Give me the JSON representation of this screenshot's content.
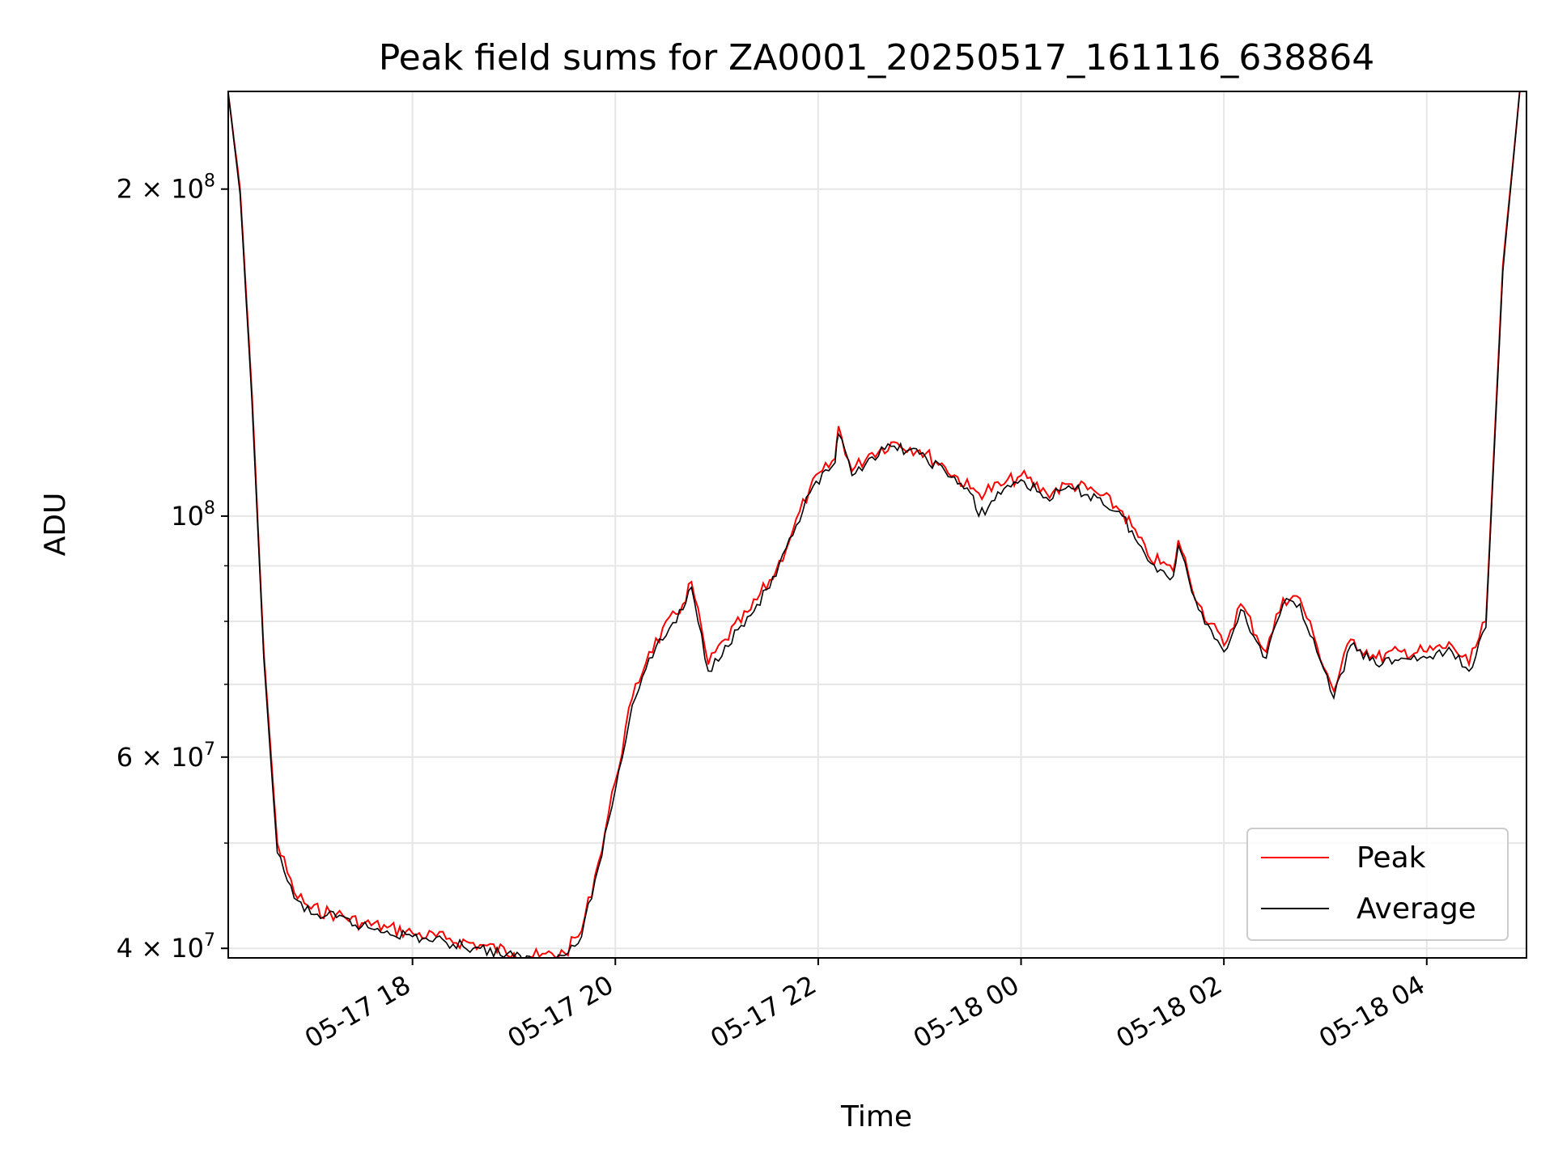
{
  "chart_data": {
    "type": "line",
    "title": "Peak field sums for ZA0001_20250517_161116_638864",
    "xlabel": "Time",
    "ylabel": "ADU",
    "x_ticks": [
      "05-17 18",
      "05-17 20",
      "05-17 22",
      "05-18 00",
      "05-18 02",
      "05-18 04"
    ],
    "y_ticks": [
      {
        "value": 40000000,
        "mant": "4 × 10",
        "exp": "7"
      },
      {
        "value": 60000000,
        "mant": "6 × 10",
        "exp": "7"
      },
      {
        "value": 100000000,
        "mant": "10",
        "exp": "8"
      },
      {
        "value": 200000000,
        "mant": "2 × 10",
        "exp": "8"
      }
    ],
    "xlim": [
      "2025-05-17 16:11",
      "2025-05-18 04:59"
    ],
    "ylim": [
      39200000,
      246000000
    ],
    "yscale": "log",
    "grid": true,
    "legend_position": "lower right",
    "series": [
      {
        "name": "Peak",
        "color": "#ff0000",
        "x": [
          "2025-05-17 16:11",
          "2025-05-17 16:18",
          "2025-05-17 16:25",
          "2025-05-17 16:32",
          "2025-05-17 16:40",
          "2025-05-17 16:50",
          "2025-05-17 17:00",
          "2025-05-17 17:15",
          "2025-05-17 17:30",
          "2025-05-17 17:45",
          "2025-05-17 18:00",
          "2025-05-17 18:20",
          "2025-05-17 18:40",
          "2025-05-17 19:00",
          "2025-05-17 19:15",
          "2025-05-17 19:30",
          "2025-05-17 19:40",
          "2025-05-17 19:50",
          "2025-05-17 20:00",
          "2025-05-17 20:10",
          "2025-05-17 20:20",
          "2025-05-17 20:40",
          "2025-05-17 20:45",
          "2025-05-17 20:55",
          "2025-05-17 21:05",
          "2025-05-17 21:20",
          "2025-05-17 21:35",
          "2025-05-17 21:45",
          "2025-05-17 21:55",
          "2025-05-17 22:10",
          "2025-05-17 22:12",
          "2025-05-17 22:20",
          "2025-05-17 22:30",
          "2025-05-17 22:45",
          "2025-05-17 23:00",
          "2025-05-17 23:15",
          "2025-05-17 23:30",
          "2025-05-17 23:35",
          "2025-05-17 23:50",
          "2025-05-18 00:00",
          "2025-05-18 00:15",
          "2025-05-18 00:30",
          "2025-05-18 00:45",
          "2025-05-18 01:00",
          "2025-05-18 01:15",
          "2025-05-18 01:30",
          "2025-05-18 01:33",
          "2025-05-18 01:45",
          "2025-05-18 02:00",
          "2025-05-18 02:10",
          "2025-05-18 02:25",
          "2025-05-18 02:35",
          "2025-05-18 02:45",
          "2025-05-18 02:55",
          "2025-05-18 03:05",
          "2025-05-18 03:15",
          "2025-05-18 03:30",
          "2025-05-18 03:45",
          "2025-05-18 04:00",
          "2025-05-18 04:15",
          "2025-05-18 04:25",
          "2025-05-18 04:35",
          "2025-05-18 04:45",
          "2025-05-18 04:55"
        ],
        "values": [
          245000000,
          200000000,
          130000000,
          75000000,
          50000000,
          45000000,
          43500000,
          43000000,
          42200000,
          41800000,
          41300000,
          40800000,
          40300000,
          39600000,
          39300000,
          39600000,
          41500000,
          48000000,
          57000000,
          68000000,
          75000000,
          83000000,
          87000000,
          73000000,
          77000000,
          82000000,
          89000000,
          97000000,
          106000000,
          113000000,
          121000000,
          110000000,
          114000000,
          117000000,
          115000000,
          111000000,
          106000000,
          105000000,
          107000000,
          109000000,
          105000000,
          107000000,
          105000000,
          101000000,
          92000000,
          89000000,
          95000000,
          83000000,
          76000000,
          83000000,
          75000000,
          84000000,
          84000000,
          76000000,
          69000000,
          77000000,
          74000000,
          75000000,
          75000000,
          76000000,
          73000000,
          80000000,
          170000000,
          246000000
        ]
      },
      {
        "name": "Average",
        "color": "#000000",
        "x": [
          "2025-05-17 16:11",
          "2025-05-17 16:18",
          "2025-05-17 16:25",
          "2025-05-17 16:32",
          "2025-05-17 16:40",
          "2025-05-17 16:50",
          "2025-05-17 17:00",
          "2025-05-17 17:15",
          "2025-05-17 17:30",
          "2025-05-17 17:45",
          "2025-05-17 18:00",
          "2025-05-17 18:20",
          "2025-05-17 18:40",
          "2025-05-17 19:00",
          "2025-05-17 19:15",
          "2025-05-17 19:30",
          "2025-05-17 19:40",
          "2025-05-17 19:50",
          "2025-05-17 20:00",
          "2025-05-17 20:10",
          "2025-05-17 20:20",
          "2025-05-17 20:40",
          "2025-05-17 20:45",
          "2025-05-17 20:55",
          "2025-05-17 21:05",
          "2025-05-17 21:20",
          "2025-05-17 21:35",
          "2025-05-17 21:45",
          "2025-05-17 21:55",
          "2025-05-17 22:10",
          "2025-05-17 22:12",
          "2025-05-17 22:20",
          "2025-05-17 22:30",
          "2025-05-17 22:45",
          "2025-05-17 23:00",
          "2025-05-17 23:15",
          "2025-05-17 23:30",
          "2025-05-17 23:35",
          "2025-05-17 23:50",
          "2025-05-18 00:00",
          "2025-05-18 00:15",
          "2025-05-18 00:30",
          "2025-05-18 00:45",
          "2025-05-18 01:00",
          "2025-05-18 01:15",
          "2025-05-18 01:30",
          "2025-05-18 01:33",
          "2025-05-18 01:45",
          "2025-05-18 02:00",
          "2025-05-18 02:10",
          "2025-05-18 02:25",
          "2025-05-18 02:35",
          "2025-05-18 02:45",
          "2025-05-18 02:55",
          "2025-05-18 03:05",
          "2025-05-18 03:15",
          "2025-05-18 03:30",
          "2025-05-18 03:45",
          "2025-05-18 04:00",
          "2025-05-18 04:15",
          "2025-05-18 04:25",
          "2025-05-18 04:35",
          "2025-05-18 04:45",
          "2025-05-18 04:55"
        ],
        "values": [
          245000000,
          198000000,
          128000000,
          74000000,
          49000000,
          44500000,
          43000000,
          42700000,
          41900000,
          41500000,
          41000000,
          40500000,
          40000000,
          39300000,
          39000000,
          39400000,
          41000000,
          47500000,
          56000000,
          67000000,
          74000000,
          82000000,
          86000000,
          72000000,
          76000000,
          81000000,
          88000000,
          96000000,
          105000000,
          112000000,
          119000000,
          109000000,
          113000000,
          116000000,
          114000000,
          110000000,
          105000000,
          100000000,
          106000000,
          108000000,
          104000000,
          106000000,
          104000000,
          100000000,
          91000000,
          88000000,
          94000000,
          82000000,
          75000000,
          82000000,
          74000000,
          83000000,
          83000000,
          75000000,
          68000000,
          76000000,
          73000000,
          74000000,
          74000000,
          75000000,
          72000000,
          79000000,
          168000000,
          246000000
        ]
      }
    ]
  }
}
